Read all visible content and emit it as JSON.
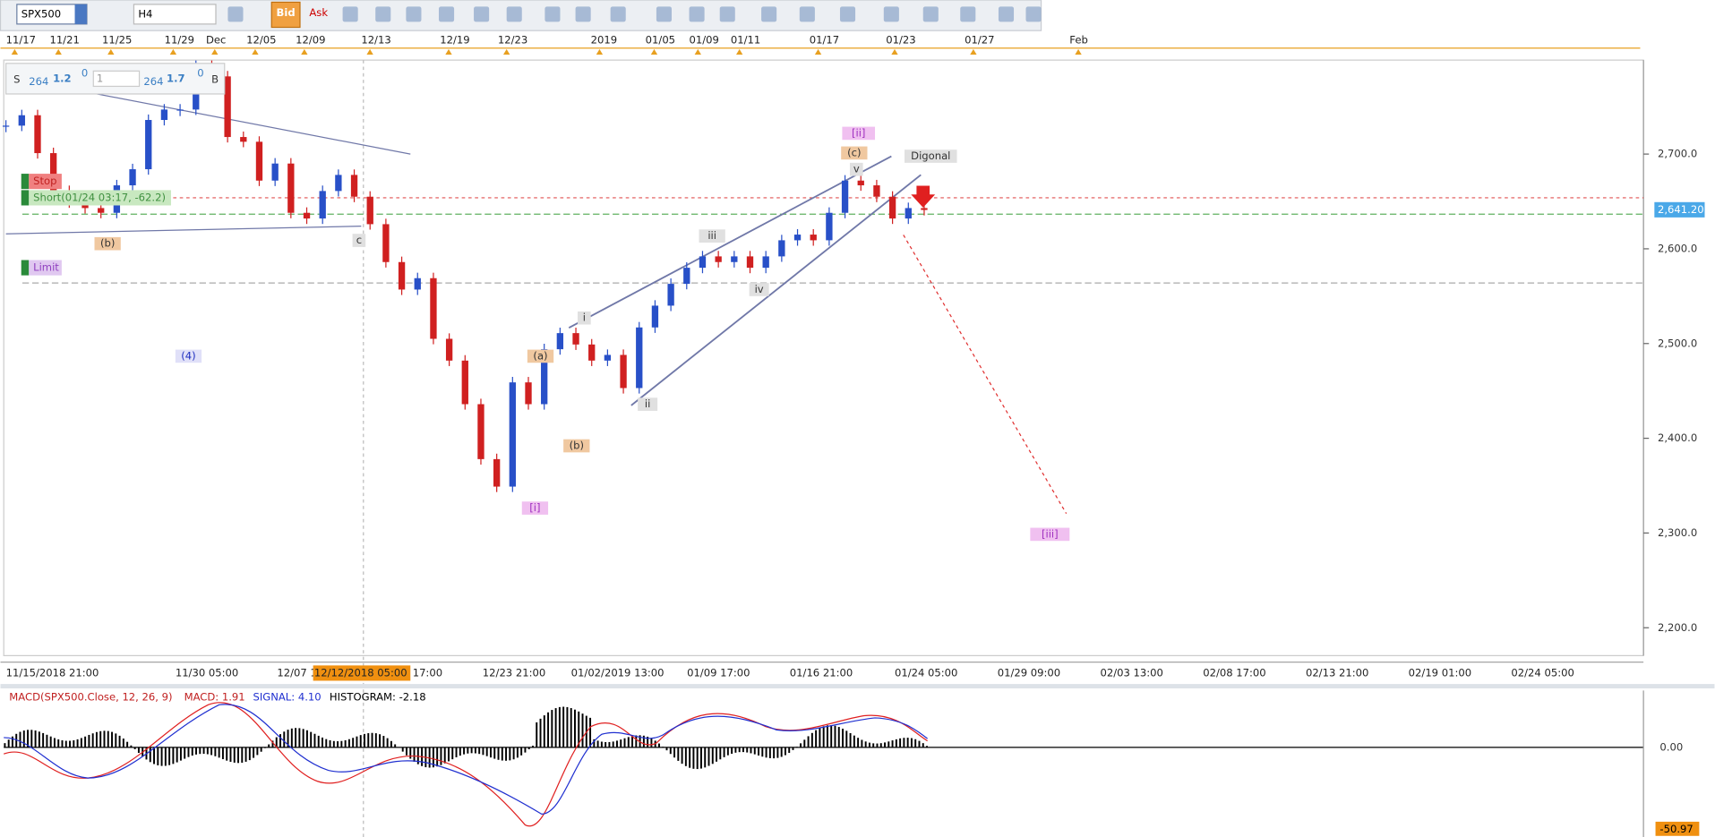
{
  "toolbar": {
    "symbol": "SPX500",
    "timeframe": "H4",
    "bid": "Bid",
    "ask": "Ask"
  },
  "trade_panel": {
    "sell": "S",
    "sell_big": "264",
    "sell_price": "1.2",
    "sell_sup": "0",
    "amount": "1",
    "buy_big": "264",
    "buy_price": "1.7",
    "buy_sup": "0",
    "buy": "B"
  },
  "top_axis": [
    "11/17",
    "11/21",
    "11/25",
    "11/29",
    "Dec",
    "12/05",
    "12/09",
    "12/13",
    "12/19",
    "12/23",
    "2019",
    "01/05",
    "01/09",
    "01/11",
    "01/17",
    "01/23",
    "01/27",
    "Feb"
  ],
  "time_axis": [
    "11/15/2018 21:00",
    "11/30 05:00",
    "12/07 1",
    "12/12/2018 05:00",
    "17:00",
    "12/23 21:00",
    "01/02/2019 13:00",
    "01/09 17:00",
    "01/16 21:00",
    "01/24 05:00",
    "01/29 09:00",
    "02/03 13:00",
    "02/08 17:00",
    "02/13 21:00",
    "02/19 01:00",
    "02/24 05:00"
  ],
  "price_axis": {
    "ticks": [
      {
        "value": 2700,
        "label": "2,700.0"
      },
      {
        "value": 2600,
        "label": "2,600.0"
      },
      {
        "value": 2500,
        "label": "2,500.0"
      },
      {
        "value": 2400,
        "label": "2,400.0"
      },
      {
        "value": 2300,
        "label": "2,300.0"
      },
      {
        "value": 2200,
        "label": "2,200.0"
      }
    ],
    "current": {
      "value": 2641.2,
      "label": "2,641.20"
    }
  },
  "price": {
    "closes": [
      2730,
      2741,
      2701,
      2661,
      2649,
      2643,
      2638,
      2667,
      2684,
      2736,
      2747,
      2747,
      2793,
      2782,
      2718,
      2713,
      2672,
      2690,
      2638,
      2632,
      2661,
      2678,
      2655,
      2626,
      2586,
      2557,
      2569,
      2505,
      2482,
      2436,
      2378,
      2349,
      2459,
      2436,
      2494,
      2511,
      2499,
      2482,
      2488,
      2453,
      2517,
      2540,
      2563,
      2580,
      2592,
      2586,
      2592,
      2580,
      2592,
      2609,
      2615,
      2609,
      2638,
      2672,
      2667,
      2655,
      2632,
      2643,
      2641
    ]
  },
  "orders": {
    "stop": "Stop",
    "short": "Short(01/24 03:17, -62.2)",
    "limit": "Limit"
  },
  "waves": [
    "(b)",
    "c",
    "(4)",
    "(a)",
    "(b)",
    "[i]",
    "i",
    "ii",
    "iii",
    "iv",
    "v",
    "(c)",
    "[ii]",
    "Digonal",
    "[iii]"
  ],
  "macd": {
    "title": "MACD(SPX500.Close, 12, 26, 9)",
    "macd": "MACD: 1.91",
    "signal": "SIGNAL: 4.10",
    "histogram": "HISTOGRAM: -2.18",
    "zero": "0.00",
    "low": "-50.97"
  }
}
